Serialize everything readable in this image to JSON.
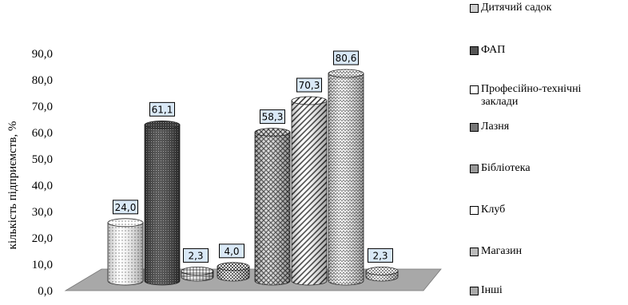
{
  "chart_data": {
    "type": "bar",
    "title": "",
    "xlabel": "",
    "ylabel": "кількість підприємств, %",
    "ylim": [
      0,
      90
    ],
    "yticks": [
      "0,0",
      "10,0",
      "20,0",
      "30,0",
      "40,0",
      "50,0",
      "60,0",
      "70,0",
      "80,0",
      "90,0"
    ],
    "grid": false,
    "legend_position": "right",
    "shape": "cylinder-3d",
    "categories": [
      "Дитячий садок",
      "ФАП",
      "Професійно-технічні заклади",
      "Лазня",
      "Бібліотека",
      "Клуб",
      "Магазин",
      "Інші"
    ],
    "values": [
      24.0,
      61.1,
      2.3,
      4.0,
      58.3,
      70.3,
      80.6,
      2.3
    ],
    "data_labels": [
      "24,0",
      "61,1",
      "2,3",
      "4,0",
      "58,3",
      "70,3",
      "80,6",
      "2,3"
    ],
    "patterns": [
      "dots",
      "dense-dark",
      "plaid",
      "checker",
      "weave",
      "diagonal",
      "zigzag",
      "checker-light"
    ],
    "label_bg_color": "#d9e8f6",
    "floor_color": "#a8a8a8"
  }
}
